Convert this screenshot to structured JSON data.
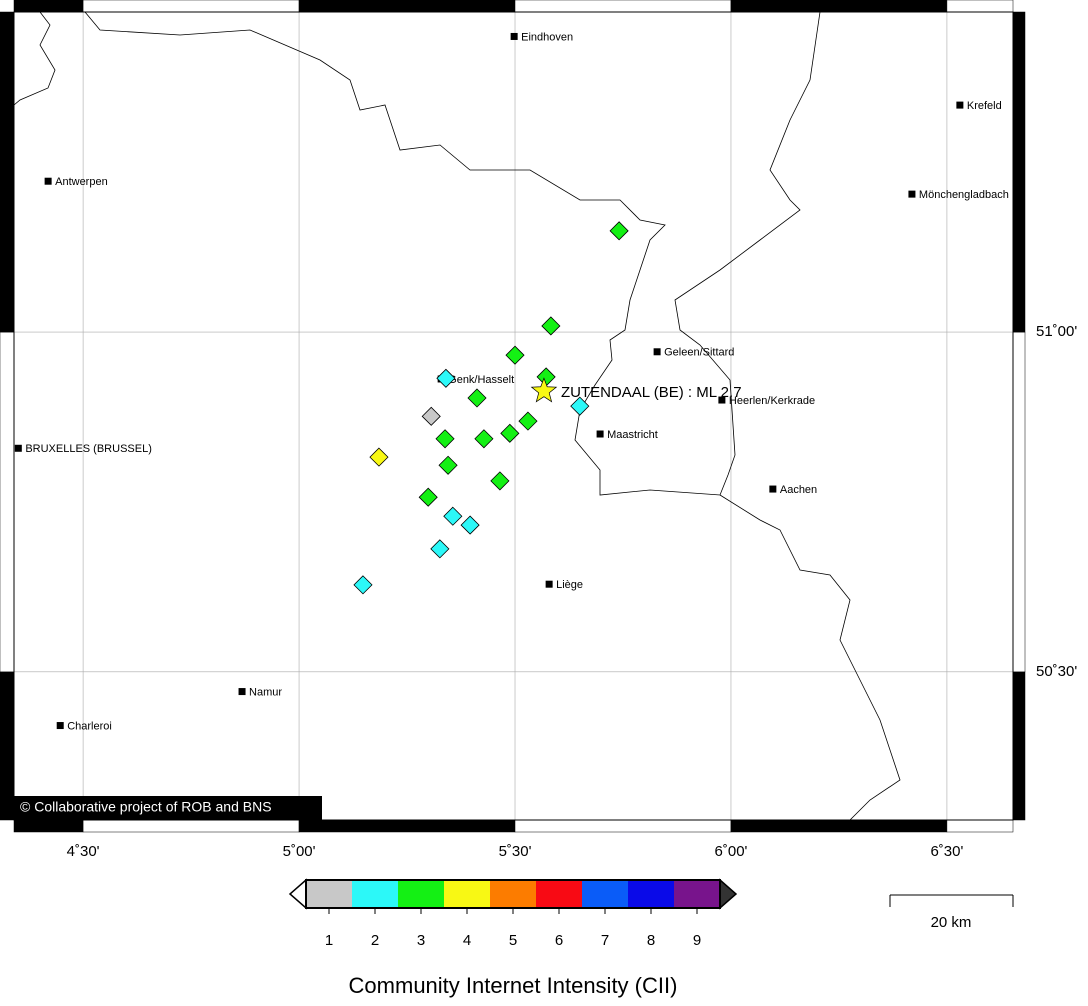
{
  "map": {
    "lonlim": [
      4.34,
      6.653
    ],
    "latlim": [
      50.282,
      51.471
    ],
    "lonticks": [
      {
        "value": 4.5,
        "label": "4˚30'"
      },
      {
        "value": 5,
        "label": "5˚00'"
      },
      {
        "value": 5.5,
        "label": "5˚30'"
      },
      {
        "value": 6,
        "label": "6˚00'"
      },
      {
        "value": 6.5,
        "label": "6˚30'"
      }
    ],
    "latticks": [
      {
        "value": 50.5,
        "label": "50˚30'"
      },
      {
        "value": 51,
        "label": "51˚00'"
      }
    ],
    "cities": [
      {
        "label": "Eindhoven",
        "lon": 5.498,
        "lat": 51.435
      },
      {
        "label": "Krefeld",
        "lon": 6.53,
        "lat": 51.334
      },
      {
        "label": "Antwerpen",
        "lon": 4.419,
        "lat": 51.222
      },
      {
        "label": "Mönchengladbach",
        "lon": 6.419,
        "lat": 51.203
      },
      {
        "label": "Geleen/Sittard",
        "lon": 5.829,
        "lat": 50.971
      },
      {
        "label": "Genk/Hasselt",
        "lon": 5.329,
        "lat": 50.931
      },
      {
        "label": "Heerlen/Kerkrade",
        "lon": 5.979,
        "lat": 50.9
      },
      {
        "label": "Maastricht",
        "lon": 5.697,
        "lat": 50.85
      },
      {
        "label": "BRUXELLES (BRUSSEL)",
        "lon": 4.35,
        "lat": 50.829
      },
      {
        "label": "Aachen",
        "lon": 6.097,
        "lat": 50.769
      },
      {
        "label": "Liège",
        "lon": 5.579,
        "lat": 50.629
      },
      {
        "label": "Namur",
        "lon": 4.868,
        "lat": 50.471
      },
      {
        "label": "Charleroi",
        "lon": 4.447,
        "lat": 50.421
      }
    ],
    "epicenter": {
      "label": "ZUTENDAAL (BE) : ML 2.7",
      "lon": 5.567,
      "lat": 50.913
    },
    "reports": [
      {
        "lon": 5.741,
        "lat": 51.149,
        "intensity": 3
      },
      {
        "lon": 5.583,
        "lat": 51.009,
        "intensity": 3
      },
      {
        "lon": 5.5,
        "lat": 50.966,
        "intensity": 3
      },
      {
        "lon": 5.572,
        "lat": 50.934,
        "intensity": 3
      },
      {
        "lon": 5.34,
        "lat": 50.932,
        "intensity": 2
      },
      {
        "lon": 5.412,
        "lat": 50.903,
        "intensity": 3
      },
      {
        "lon": 5.65,
        "lat": 50.891,
        "intensity": 2
      },
      {
        "lon": 5.306,
        "lat": 50.876,
        "intensity": 1
      },
      {
        "lon": 5.53,
        "lat": 50.869,
        "intensity": 3
      },
      {
        "lon": 5.488,
        "lat": 50.851,
        "intensity": 3
      },
      {
        "lon": 5.338,
        "lat": 50.843,
        "intensity": 3
      },
      {
        "lon": 5.428,
        "lat": 50.843,
        "intensity": 3
      },
      {
        "lon": 5.185,
        "lat": 50.816,
        "intensity": 4
      },
      {
        "lon": 5.345,
        "lat": 50.804,
        "intensity": 3
      },
      {
        "lon": 5.465,
        "lat": 50.781,
        "intensity": 3
      },
      {
        "lon": 5.299,
        "lat": 50.757,
        "intensity": 3
      },
      {
        "lon": 5.356,
        "lat": 50.729,
        "intensity": 2
      },
      {
        "lon": 5.396,
        "lat": 50.716,
        "intensity": 2
      },
      {
        "lon": 5.326,
        "lat": 50.681,
        "intensity": 2
      },
      {
        "lon": 5.148,
        "lat": 50.628,
        "intensity": 2
      }
    ],
    "scale": {
      "title": "Community Internet Intensity (CII)",
      "values": [
        1,
        2,
        3,
        4,
        5,
        6,
        7,
        8,
        9
      ],
      "colors": [
        "#c8c8c8",
        "#2cf8f8",
        "#14f014",
        "#f8f814",
        "#fc7c00",
        "#f80a14",
        "#0a5cf8",
        "#0a0ae8",
        "#78148c"
      ]
    },
    "scalebar": "20 km",
    "credit": "© Collaborative project of ROB and BNS"
  }
}
